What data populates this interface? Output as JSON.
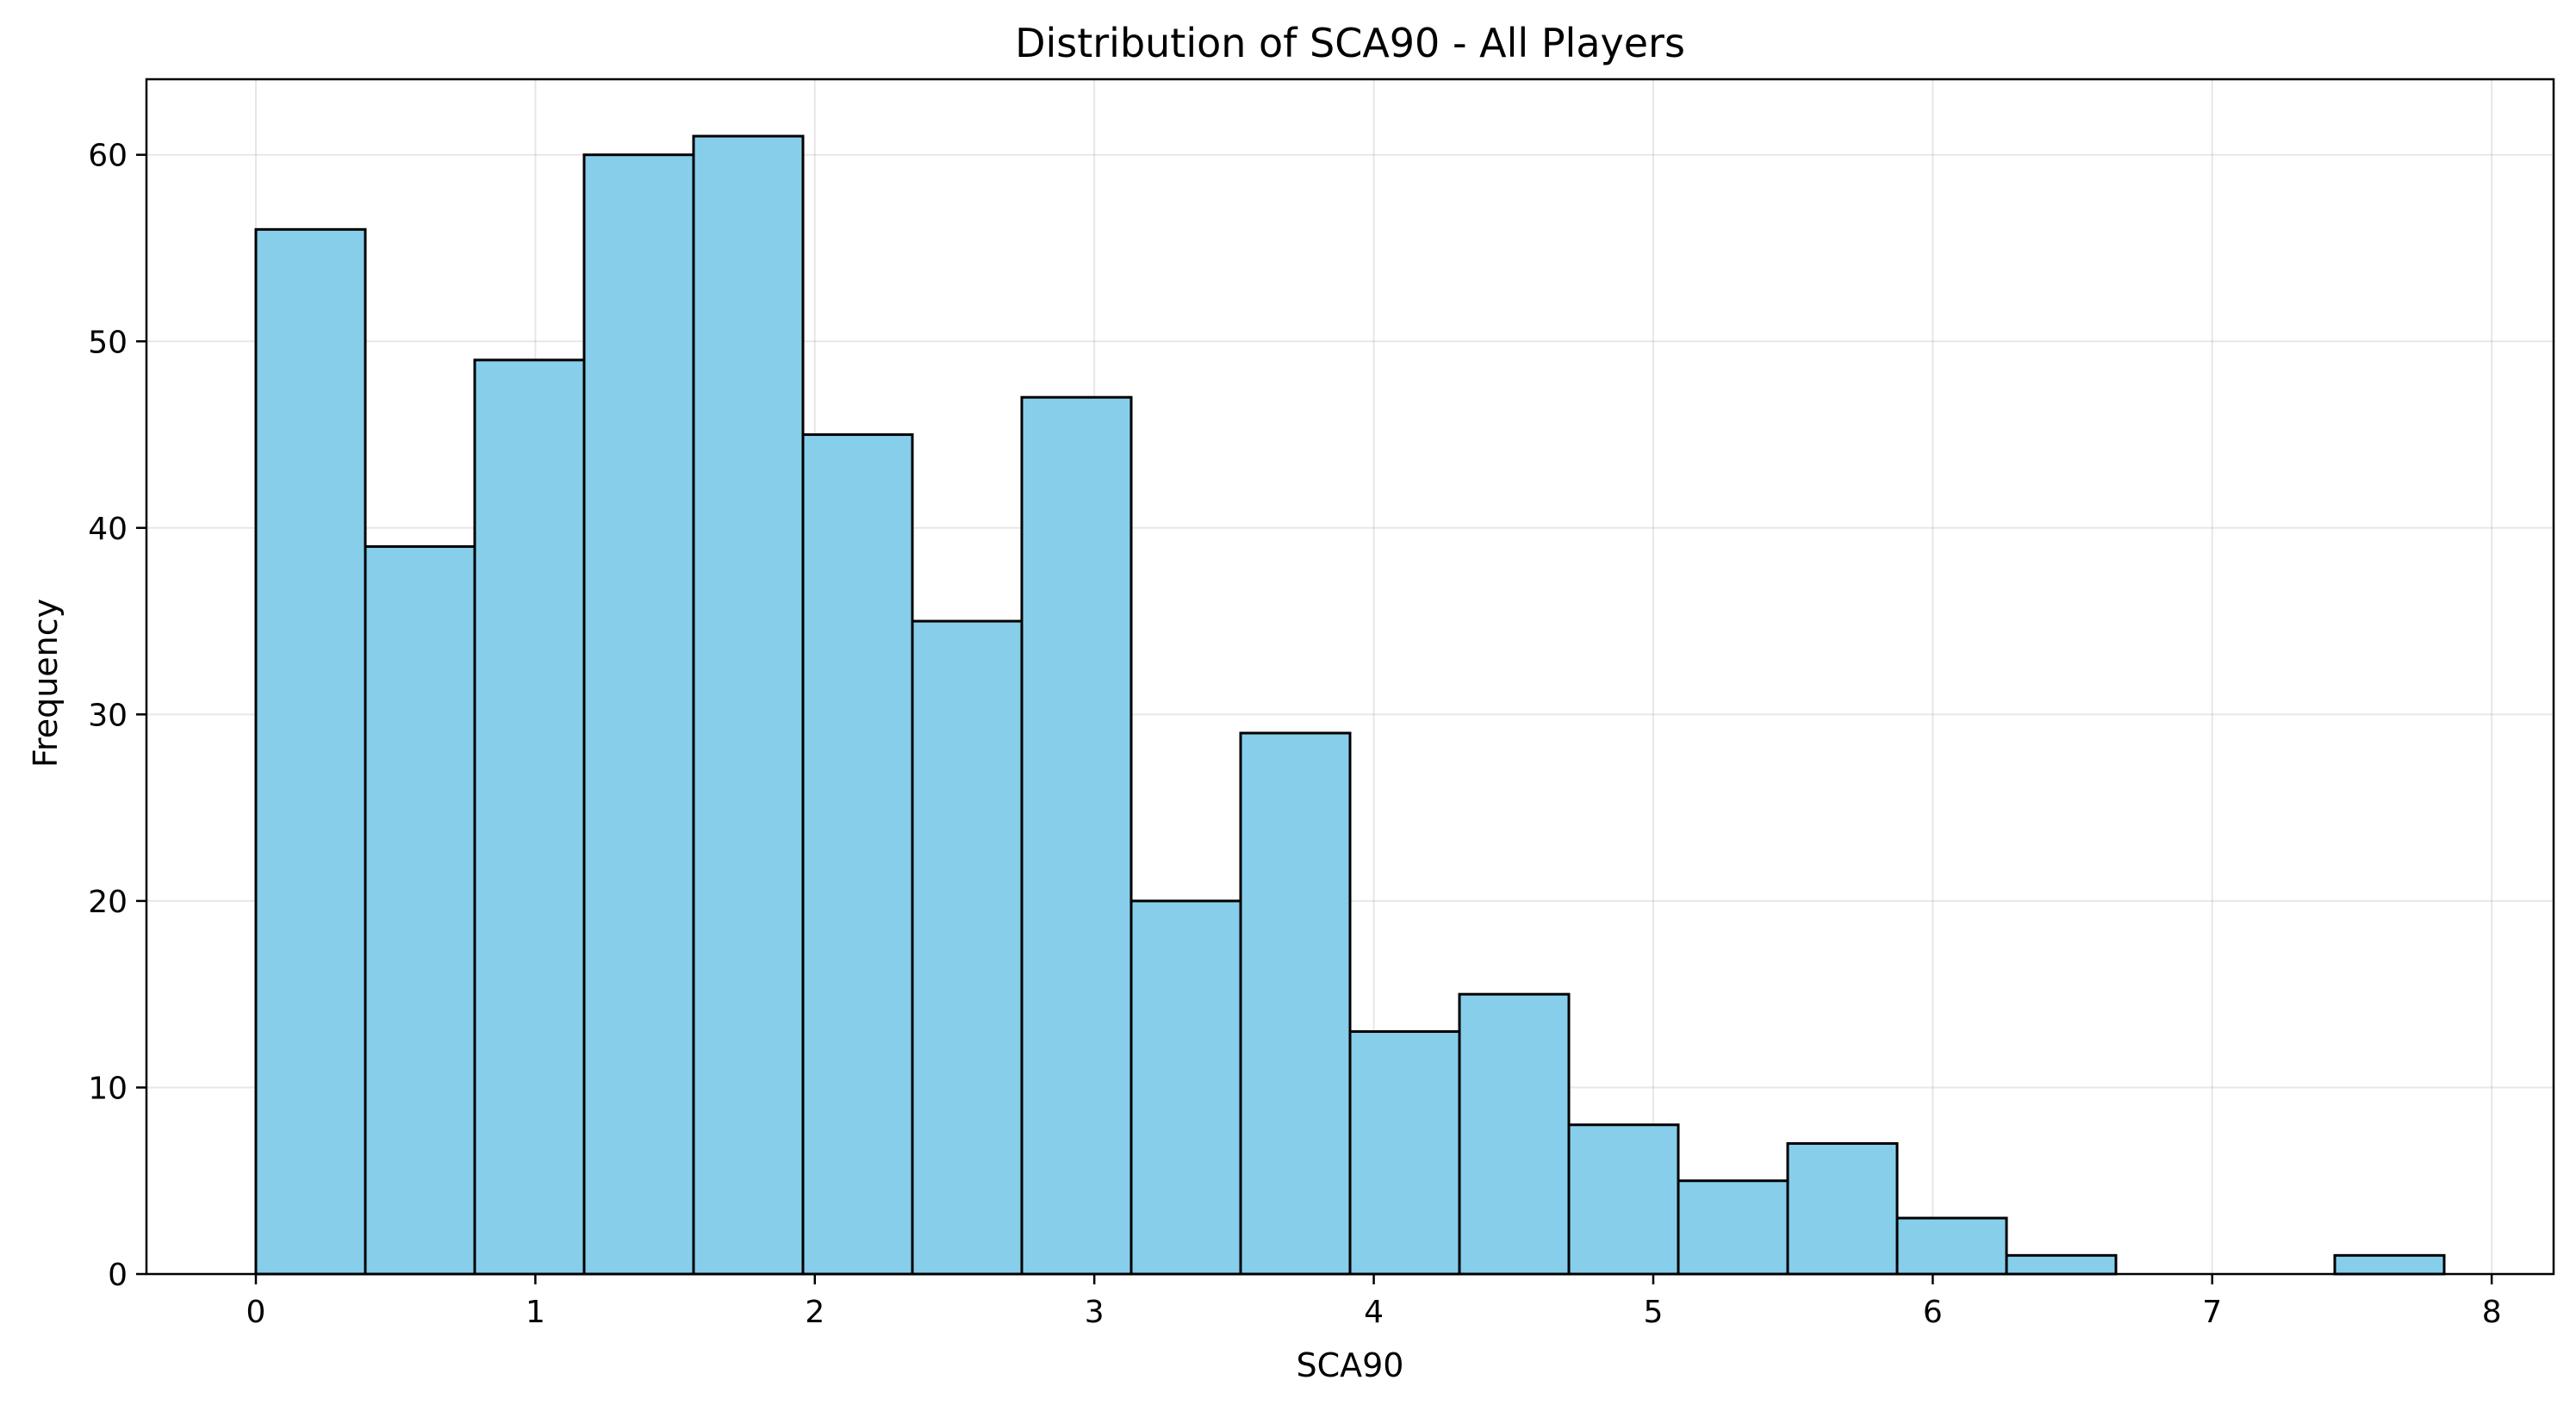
{
  "chart_data": {
    "type": "bar",
    "subtype": "histogram",
    "title": "Distribution of SCA90 - All Players",
    "xlabel": "SCA90",
    "ylabel": "Frequency",
    "bin_edges": [
      0,
      0.3915,
      0.783,
      1.1745,
      1.566,
      1.9575,
      2.349,
      2.7405,
      3.132,
      3.5235,
      3.915,
      4.3065,
      4.698,
      5.0895,
      5.481,
      5.8725,
      6.264,
      6.6555,
      7.047,
      7.4385,
      7.83
    ],
    "values": [
      56,
      39,
      49,
      60,
      61,
      45,
      35,
      47,
      20,
      29,
      13,
      15,
      8,
      5,
      7,
      3,
      1,
      0,
      0,
      1
    ],
    "xlim": [
      -0.3915,
      8.2215
    ],
    "ylim": [
      0,
      64.05
    ],
    "xticks": [
      "0",
      "1",
      "2",
      "3",
      "4",
      "5",
      "6",
      "7",
      "8"
    ],
    "yticks": [
      "0",
      "10",
      "20",
      "30",
      "40",
      "50",
      "60"
    ],
    "grid": true,
    "bar_color": "#87ceeb",
    "edge_color": "#000000"
  }
}
